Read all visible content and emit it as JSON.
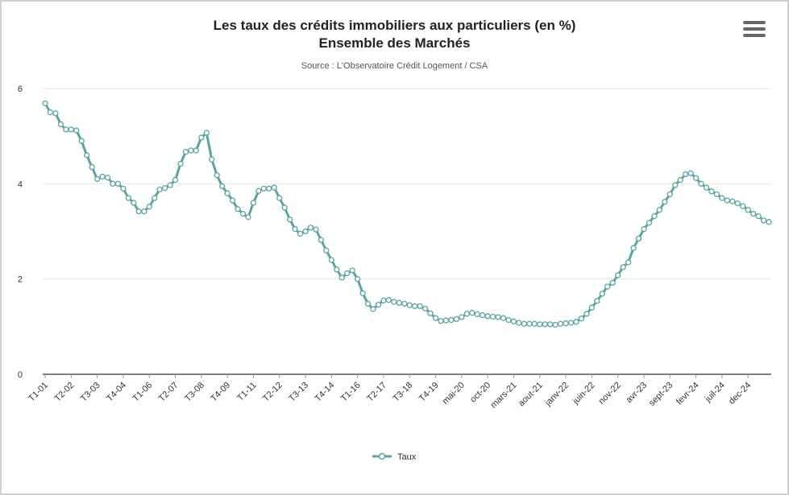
{
  "menu_icon": "hamburger-menu-icon",
  "colors": {
    "series": "#58a5a2",
    "grid": "#e6e6e6",
    "axis": "#333333"
  },
  "chart_data": {
    "type": "line",
    "title": "Les taux des crédits immobiliers aux particuliers (en %)",
    "subtitle": "Ensemble des Marchés",
    "source": "Source : L'Observatoire Crédit Logement / CSA",
    "xlabel": "",
    "ylabel": "",
    "ylim": [
      0,
      6
    ],
    "yticks": [
      0,
      2,
      4,
      6
    ],
    "grid": true,
    "legend_position": "bottom-center",
    "x_tick_labels": [
      {
        "label": "T1-01",
        "index": 0
      },
      {
        "label": "T2-02",
        "index": 5
      },
      {
        "label": "T3-03",
        "index": 10
      },
      {
        "label": "T4-04",
        "index": 15
      },
      {
        "label": "T1-06",
        "index": 20
      },
      {
        "label": "T2-07",
        "index": 25
      },
      {
        "label": "T3-08",
        "index": 30
      },
      {
        "label": "T4-09",
        "index": 35
      },
      {
        "label": "T1-11",
        "index": 40
      },
      {
        "label": "T2-12",
        "index": 45
      },
      {
        "label": "T3-13",
        "index": 50
      },
      {
        "label": "T4-14",
        "index": 55
      },
      {
        "label": "T1-16",
        "index": 60
      },
      {
        "label": "T2-17",
        "index": 65
      },
      {
        "label": "T3-18",
        "index": 70
      },
      {
        "label": "T4-19",
        "index": 75
      },
      {
        "label": "mai-20",
        "index": 80
      },
      {
        "label": "oct-20",
        "index": 85
      },
      {
        "label": "mars-21",
        "index": 90
      },
      {
        "label": "aout-21",
        "index": 95
      },
      {
        "label": "janv-22",
        "index": 100
      },
      {
        "label": "juin-22",
        "index": 105
      },
      {
        "label": "nov-22",
        "index": 110
      },
      {
        "label": "avr-23",
        "index": 115
      },
      {
        "label": "sept-23",
        "index": 120
      },
      {
        "label": "fevr-24",
        "index": 125
      },
      {
        "label": "juil-24",
        "index": 130
      },
      {
        "label": "dec-24",
        "index": 135
      }
    ],
    "series": [
      {
        "name": "Taux",
        "values": [
          5.69,
          5.5,
          5.48,
          5.25,
          5.14,
          5.14,
          5.12,
          4.9,
          4.6,
          4.35,
          4.1,
          4.15,
          4.13,
          4.0,
          4.0,
          3.9,
          3.7,
          3.6,
          3.42,
          3.42,
          3.52,
          3.7,
          3.88,
          3.91,
          3.97,
          4.08,
          4.42,
          4.67,
          4.7,
          4.7,
          4.97,
          5.07,
          4.51,
          4.18,
          3.95,
          3.8,
          3.65,
          3.47,
          3.37,
          3.3,
          3.6,
          3.85,
          3.9,
          3.9,
          3.92,
          3.7,
          3.5,
          3.25,
          3.05,
          2.95,
          3.0,
          3.08,
          3.04,
          2.82,
          2.6,
          2.4,
          2.2,
          2.03,
          2.12,
          2.18,
          2.0,
          1.7,
          1.48,
          1.37,
          1.46,
          1.55,
          1.56,
          1.52,
          1.5,
          1.48,
          1.45,
          1.43,
          1.43,
          1.38,
          1.28,
          1.18,
          1.12,
          1.13,
          1.14,
          1.16,
          1.2,
          1.27,
          1.29,
          1.26,
          1.24,
          1.22,
          1.21,
          1.2,
          1.18,
          1.14,
          1.11,
          1.08,
          1.06,
          1.06,
          1.06,
          1.05,
          1.05,
          1.05,
          1.04,
          1.06,
          1.07,
          1.08,
          1.1,
          1.17,
          1.27,
          1.4,
          1.54,
          1.69,
          1.84,
          1.92,
          2.08,
          2.25,
          2.35,
          2.65,
          2.85,
          3.05,
          3.18,
          3.32,
          3.45,
          3.62,
          3.78,
          3.97,
          4.08,
          4.2,
          4.22,
          4.12,
          4.0,
          3.92,
          3.84,
          3.78,
          3.7,
          3.65,
          3.63,
          3.59,
          3.53,
          3.45,
          3.37,
          3.32,
          3.23,
          3.2
        ]
      }
    ]
  }
}
